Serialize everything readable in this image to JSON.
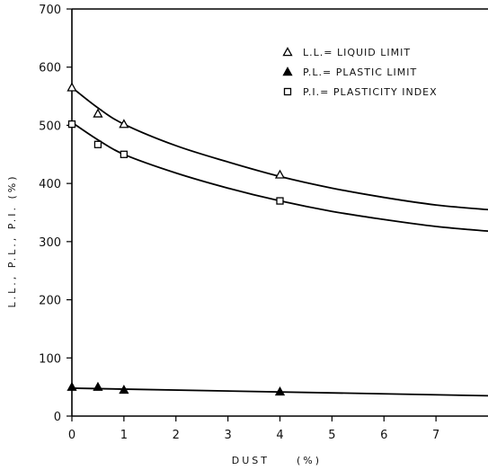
{
  "chart_data": {
    "type": "scatter",
    "xlabel": "DUST",
    "xlabel_unit": "(%)",
    "ylabel": "L.L., P.L., P.I. (%)",
    "xlim": [
      0,
      8
    ],
    "ylim": [
      0,
      700
    ],
    "x_ticks": [
      0,
      1,
      2,
      3,
      4,
      5,
      6,
      7
    ],
    "y_ticks": [
      0,
      100,
      200,
      300,
      400,
      500,
      600,
      700
    ],
    "legend_position": "top-right",
    "series": [
      {
        "name": "L.L.= LIQUID LIMIT",
        "marker": "open-triangle",
        "x": [
          0,
          0.5,
          1,
          4
        ],
        "y": [
          565,
          520,
          502,
          415
        ],
        "trend": {
          "x": [
            0,
            0.5,
            1,
            2,
            3,
            4,
            5,
            6,
            7,
            8
          ],
          "y": [
            565,
            530,
            502,
            465,
            437,
            412,
            392,
            376,
            363,
            355
          ]
        }
      },
      {
        "name": "P.L.= PLASTIC LIMIT",
        "marker": "filled-triangle",
        "x": [
          0,
          0.5,
          1,
          4
        ],
        "y": [
          50,
          50,
          45,
          42
        ],
        "trend": {
          "x": [
            0,
            8
          ],
          "y": [
            48,
            35
          ]
        }
      },
      {
        "name": "P.I.= PLASTICITY INDEX",
        "marker": "open-square",
        "x": [
          0,
          0.5,
          1,
          4
        ],
        "y": [
          502,
          467,
          450,
          370
        ],
        "trend": {
          "x": [
            0,
            0.5,
            1,
            2,
            3,
            4,
            5,
            6,
            7,
            8
          ],
          "y": [
            505,
            475,
            450,
            418,
            392,
            370,
            352,
            338,
            326,
            318
          ]
        }
      }
    ]
  }
}
